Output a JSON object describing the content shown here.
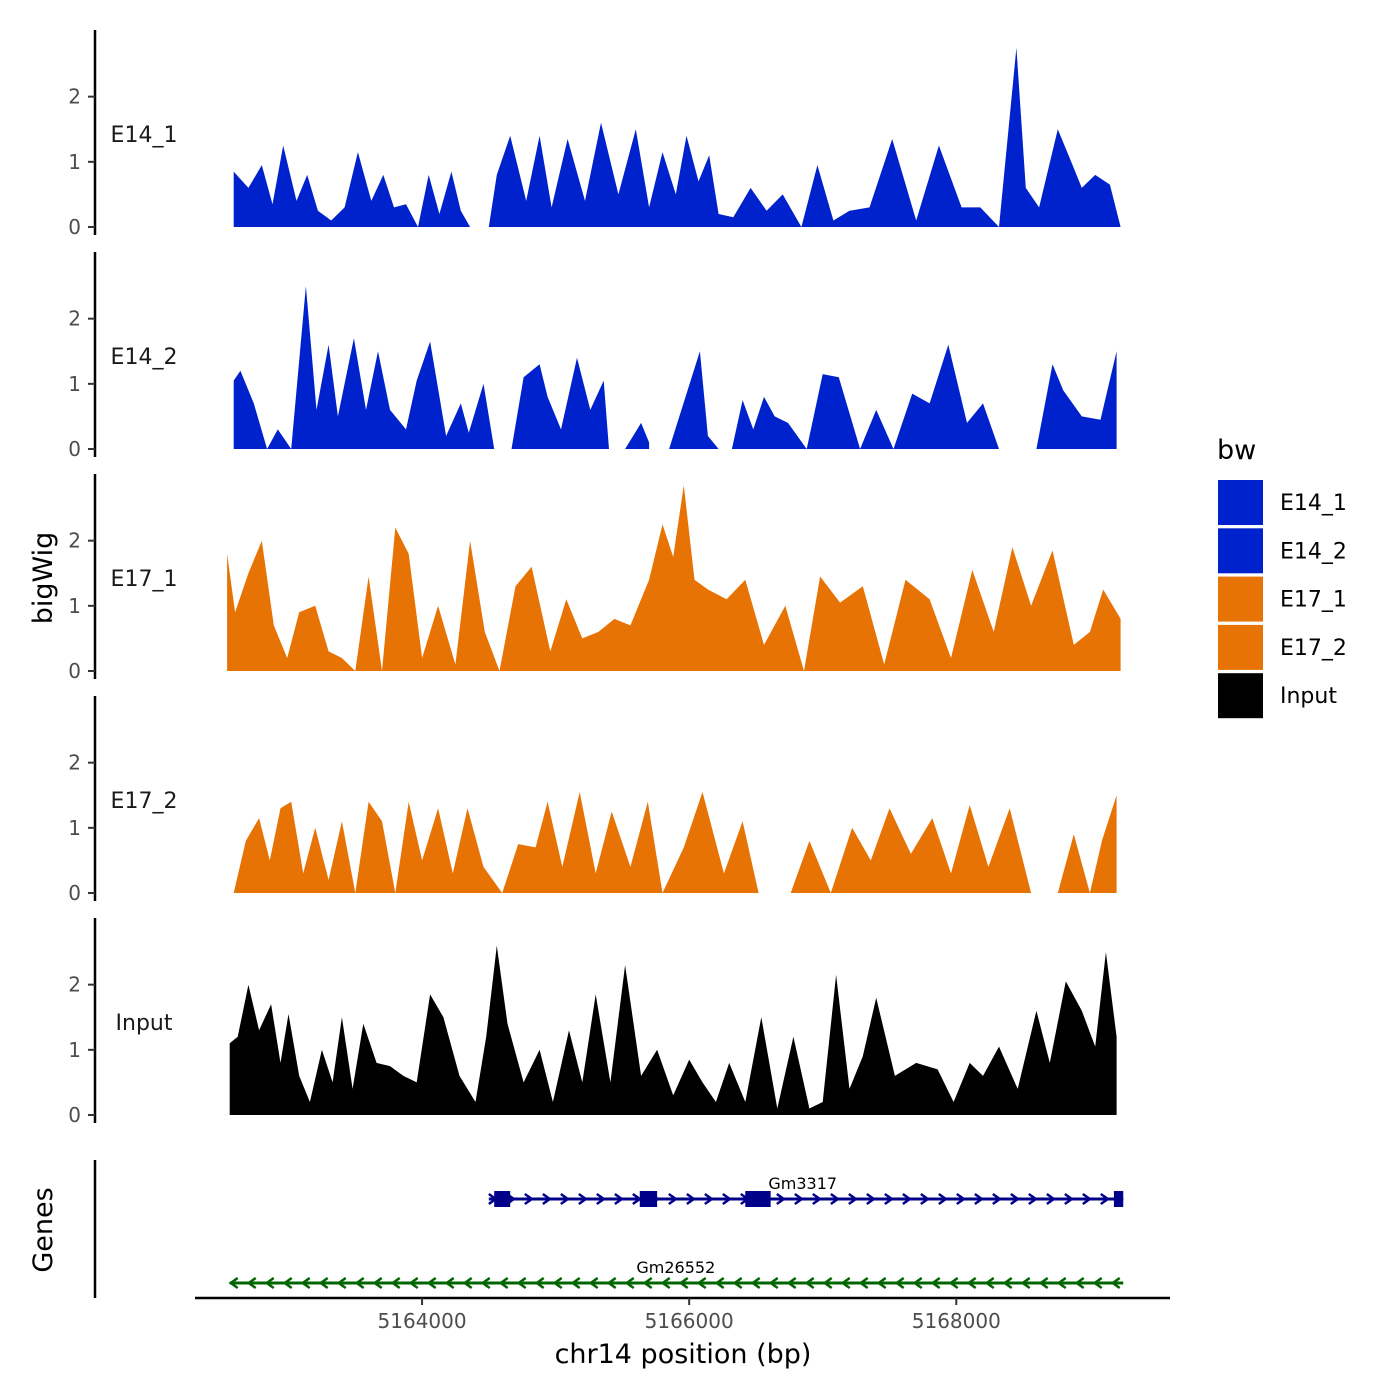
{
  "chart_data": {
    "type": "area",
    "ylabel": "bigWig",
    "xlabel": "chr14 position (bp)",
    "genes_label": "Genes",
    "legend_title": "bw",
    "xlim": [
      5162300,
      5169600
    ],
    "ylim": [
      0,
      2.9
    ],
    "yticks": [
      "0",
      "1",
      "2"
    ],
    "xticks": [
      {
        "value": 5164000,
        "label": "5164000"
      },
      {
        "value": 5166000,
        "label": "5166000"
      },
      {
        "value": 5168000,
        "label": "5168000"
      }
    ],
    "legend": [
      {
        "name": "E14_1",
        "color": "#0022CC"
      },
      {
        "name": "E14_2",
        "color": "#0022CC"
      },
      {
        "name": "E17_1",
        "color": "#E87305"
      },
      {
        "name": "E17_2",
        "color": "#E87305"
      },
      {
        "name": "Input",
        "color": "#000000"
      }
    ],
    "series": [
      {
        "name": "E14_1",
        "color": "#0022CC",
        "x": [
          5162590,
          5162700,
          5162800,
          5162880,
          5162960,
          5163060,
          5163140,
          5163220,
          5163320,
          5163420,
          5163520,
          5163620,
          5163710,
          5163790,
          5163880,
          5163970,
          5164050,
          5164130,
          5164220,
          5164290,
          5164360,
          5164470,
          5164500,
          5164560,
          5164660,
          5164780,
          5164880,
          5164970,
          5165090,
          5165220,
          5165340,
          5165470,
          5165600,
          5165700,
          5165800,
          5165900,
          5165980,
          5166070,
          5166150,
          5166220,
          5166330,
          5166460,
          5166580,
          5166700,
          5166840,
          5166960,
          5167080,
          5167200,
          5167350,
          5167520,
          5167700,
          5167870,
          5168040,
          5168180,
          5168320,
          5168450,
          5168520,
          5168620,
          5168760,
          5168860,
          5168940,
          5169040,
          5169150,
          5169230
        ],
        "y": [
          0.85,
          0.6,
          0.95,
          0.35,
          1.25,
          0.4,
          0.8,
          0.25,
          0.1,
          0.3,
          1.15,
          0.4,
          0.8,
          0.3,
          0.35,
          0.0,
          0.8,
          0.2,
          0.85,
          0.25,
          0.0,
          null,
          0.0,
          0.8,
          1.4,
          0.4,
          1.4,
          0.3,
          1.35,
          0.4,
          1.6,
          0.5,
          1.5,
          0.3,
          1.15,
          0.5,
          1.4,
          0.7,
          1.1,
          0.2,
          0.15,
          0.6,
          0.25,
          0.5,
          0.0,
          0.95,
          0.1,
          0.25,
          0.3,
          1.35,
          0.1,
          1.25,
          0.3,
          0.3,
          0.0,
          2.75,
          0.6,
          0.3,
          1.5,
          1.0,
          0.6,
          0.8,
          0.65,
          0.0
        ]
      },
      {
        "name": "E14_2",
        "color": "#0022CC",
        "x": [
          5162590,
          5162640,
          5162740,
          5162840,
          5162920,
          5163020,
          5163130,
          5163210,
          5163300,
          5163370,
          5163490,
          5163580,
          5163670,
          5163760,
          5163880,
          5163960,
          5164060,
          5164180,
          5164290,
          5164350,
          5164460,
          5164540,
          5164660,
          5164670,
          5164760,
          5164880,
          5164940,
          5165040,
          5165160,
          5165260,
          5165360,
          5165400,
          5165520,
          5165640,
          5165700,
          5165840,
          5165850,
          5166080,
          5166140,
          5166220,
          5166270,
          5166320,
          5166400,
          5166480,
          5166560,
          5166640,
          5166740,
          5166880,
          5167000,
          5167120,
          5167280,
          5167400,
          5167530,
          5167670,
          5167800,
          5167940,
          5168080,
          5168200,
          5168320,
          5168440,
          5168600,
          5168720,
          5168800,
          5168940,
          5169080,
          5169200
        ],
        "y": [
          1.05,
          1.2,
          0.7,
          0.0,
          0.3,
          0.0,
          2.5,
          0.6,
          1.6,
          0.5,
          1.7,
          0.6,
          1.5,
          0.6,
          0.3,
          1.05,
          1.65,
          0.2,
          0.7,
          0.25,
          1.0,
          0.0,
          null,
          0.0,
          1.1,
          1.3,
          0.8,
          0.3,
          1.4,
          0.6,
          1.05,
          0.0,
          0.0,
          0.4,
          0.1,
          null,
          0.0,
          1.5,
          0.2,
          0.0,
          null,
          0.0,
          0.75,
          0.3,
          0.8,
          0.5,
          0.4,
          0.0,
          1.15,
          1.1,
          0.0,
          0.6,
          0.0,
          0.85,
          0.7,
          1.6,
          0.4,
          0.7,
          0.0,
          null,
          0.0,
          1.3,
          0.9,
          0.5,
          0.45,
          1.5
        ]
      },
      {
        "name": "E17_1",
        "color": "#E87305",
        "x": [
          5162540,
          5162600,
          5162700,
          5162800,
          5162890,
          5162990,
          5163080,
          5163200,
          5163300,
          5163400,
          5163500,
          5163600,
          5163700,
          5163800,
          5163900,
          5164000,
          5164120,
          5164250,
          5164360,
          5164470,
          5164580,
          5164700,
          5164820,
          5164960,
          5165080,
          5165200,
          5165320,
          5165440,
          5165560,
          5165700,
          5165800,
          5165880,
          5165960,
          5166040,
          5166140,
          5166280,
          5166420,
          5166560,
          5166720,
          5166860,
          5166980,
          5167130,
          5167300,
          5167460,
          5167620,
          5167800,
          5167960,
          5168120,
          5168280,
          5168420,
          5168560,
          5168720,
          5168880,
          5169000,
          5169100,
          5169230
        ],
        "y": [
          1.8,
          0.9,
          1.5,
          2.0,
          0.7,
          0.2,
          0.9,
          1.0,
          0.3,
          0.2,
          0.0,
          1.45,
          0.0,
          2.2,
          1.8,
          0.2,
          1.0,
          0.1,
          2.0,
          0.6,
          0.0,
          1.3,
          1.6,
          0.3,
          1.1,
          0.5,
          0.6,
          0.8,
          0.7,
          1.4,
          2.25,
          1.75,
          2.85,
          1.4,
          1.25,
          1.1,
          1.4,
          0.4,
          1.0,
          0.0,
          1.45,
          1.05,
          1.3,
          0.1,
          1.4,
          1.1,
          0.2,
          1.55,
          0.6,
          1.9,
          1.0,
          1.85,
          0.4,
          0.6,
          1.25,
          0.8
        ]
      },
      {
        "name": "E17_2",
        "color": "#E87305",
        "x": [
          5162590,
          5162680,
          5162780,
          5162860,
          5162940,
          5163020,
          5163110,
          5163200,
          5163300,
          5163400,
          5163500,
          5163600,
          5163700,
          5163800,
          5163900,
          5164000,
          5164120,
          5164230,
          5164340,
          5164460,
          5164600,
          5164720,
          5164850,
          5164940,
          5165050,
          5165180,
          5165300,
          5165420,
          5165560,
          5165690,
          5165800,
          5165960,
          5166100,
          5166260,
          5166400,
          5166520,
          5166620,
          5166760,
          5166900,
          5167060,
          5167220,
          5167360,
          5167500,
          5167660,
          5167820,
          5167960,
          5168100,
          5168240,
          5168400,
          5168560,
          5168640,
          5168760,
          5168880,
          5169000,
          5169090,
          5169200
        ],
        "y": [
          0.0,
          0.8,
          1.15,
          0.5,
          1.3,
          1.4,
          0.3,
          1.0,
          0.2,
          1.1,
          0.0,
          1.4,
          1.1,
          0.0,
          1.4,
          0.5,
          1.3,
          0.3,
          1.3,
          0.4,
          0.0,
          0.75,
          0.7,
          1.4,
          0.4,
          1.55,
          0.3,
          1.25,
          0.4,
          1.4,
          0.0,
          0.7,
          1.55,
          0.3,
          1.1,
          0.0,
          null,
          0.0,
          0.8,
          0.0,
          1.0,
          0.5,
          1.3,
          0.6,
          1.15,
          0.3,
          1.35,
          0.4,
          1.3,
          0.0,
          null,
          0.0,
          0.9,
          0.0,
          0.8,
          1.5
        ]
      },
      {
        "name": "Input",
        "color": "#000000",
        "x": [
          5162560,
          5162620,
          5162700,
          5162780,
          5162870,
          5162940,
          5163000,
          5163080,
          5163160,
          5163250,
          5163330,
          5163400,
          5163480,
          5163560,
          5163660,
          5163760,
          5163860,
          5163960,
          5164060,
          5164160,
          5164280,
          5164400,
          5164480,
          5164560,
          5164640,
          5164760,
          5164880,
          5164980,
          5165100,
          5165200,
          5165300,
          5165410,
          5165520,
          5165640,
          5165760,
          5165880,
          5166000,
          5166100,
          5166200,
          5166300,
          5166420,
          5166540,
          5166660,
          5166780,
          5166900,
          5167000,
          5167100,
          5167200,
          5167300,
          5167400,
          5167540,
          5167700,
          5167860,
          5167980,
          5168100,
          5168200,
          5168320,
          5168460,
          5168600,
          5168700,
          5168820,
          5168940,
          5169040,
          5169120,
          5169200
        ],
        "y": [
          1.1,
          1.2,
          2.0,
          1.3,
          1.7,
          0.8,
          1.55,
          0.6,
          0.2,
          1.0,
          0.5,
          1.5,
          0.4,
          1.4,
          0.8,
          0.75,
          0.6,
          0.5,
          1.85,
          1.5,
          0.6,
          0.2,
          1.2,
          2.6,
          1.4,
          0.5,
          1.0,
          0.2,
          1.3,
          0.5,
          1.85,
          0.5,
          2.3,
          0.6,
          1.0,
          0.3,
          0.85,
          0.5,
          0.2,
          0.8,
          0.2,
          1.5,
          0.1,
          1.2,
          0.1,
          0.2,
          2.15,
          0.4,
          0.9,
          1.8,
          0.6,
          0.8,
          0.7,
          0.2,
          0.8,
          0.6,
          1.05,
          0.4,
          1.6,
          0.8,
          2.05,
          1.6,
          1.05,
          2.5,
          1.2
        ]
      }
    ],
    "genes": [
      {
        "name": "Gm3317",
        "strand": "+",
        "color": "#00008B",
        "start": 5164500,
        "end": 5169250,
        "exons": [
          [
            5164540,
            5164660
          ],
          [
            5165630,
            5165760
          ],
          [
            5166420,
            5166610
          ],
          [
            5169180,
            5169250
          ]
        ]
      },
      {
        "name": "Gm26552",
        "strand": "-",
        "color": "#006400",
        "start": 5162560,
        "end": 5169250,
        "exons": []
      }
    ]
  }
}
